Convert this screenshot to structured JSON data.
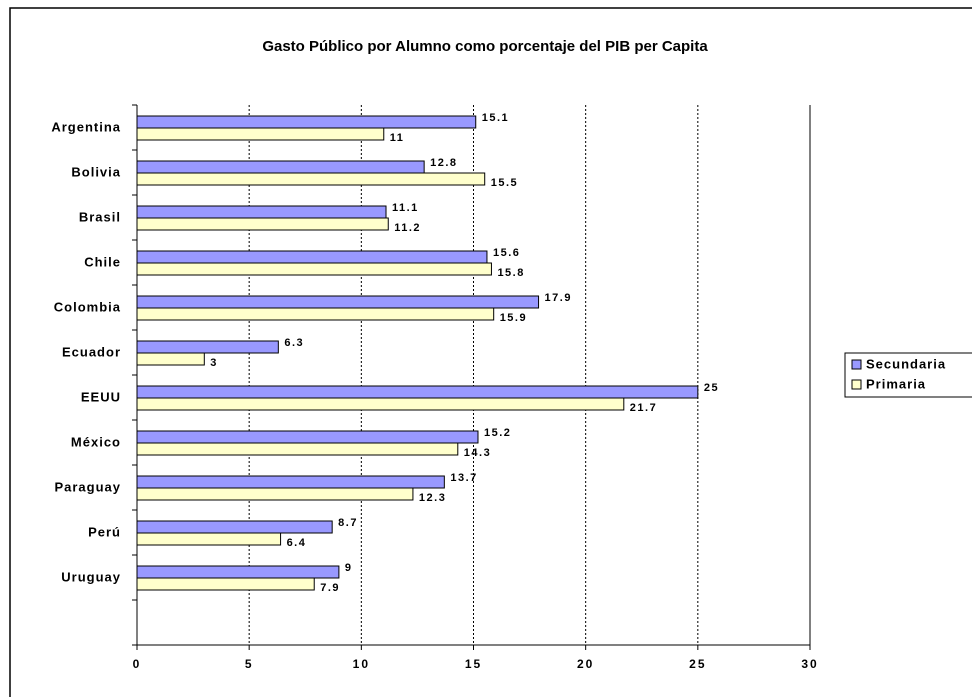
{
  "chart_data": {
    "type": "hbar",
    "title": "Gasto Público por Alumno como porcentaje del PIB per Capita",
    "categories": [
      "Argentina",
      "Bolivia",
      "Brasil",
      "Chile",
      "Colombia",
      "Ecuador",
      "EEUU",
      "México",
      "Paraguay",
      "Perú",
      "Uruguay"
    ],
    "series": [
      {
        "name": "Secundaria",
        "color": "#9999ff",
        "values": [
          15.1,
          12.8,
          11.1,
          15.6,
          17.9,
          6.3,
          25,
          15.2,
          13.7,
          8.7,
          9
        ]
      },
      {
        "name": "Primaria",
        "color": "#ffffcc",
        "values": [
          11,
          15.5,
          11.2,
          15.8,
          15.9,
          3,
          21.7,
          14.3,
          12.3,
          6.4,
          7.9
        ]
      }
    ],
    "xlim": [
      0,
      30
    ],
    "xticks": [
      0,
      5,
      10,
      15,
      20,
      25,
      30
    ],
    "grid": true,
    "legend": "right"
  }
}
